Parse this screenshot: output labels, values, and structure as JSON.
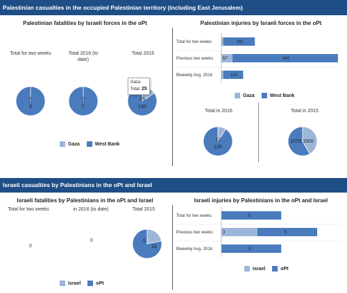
{
  "colors": {
    "gaza": "#9bb6d8",
    "west_bank": "#4a7bbd",
    "israel": "#9bb6d8",
    "opt": "#4a7bbd",
    "banner": "#1f4e86"
  },
  "section1": {
    "banner": "Palestinian casualties in the occupied Palestinian territory (including East Jerusalem)"
  },
  "section2": {
    "banner": "Israeli casualties by Palestinians in the oPt and Israel"
  },
  "tooltip": {
    "series": "Gaza",
    "label": "Total:",
    "value": "25"
  },
  "chart_data": [
    {
      "type": "pie",
      "title": "Palestinian fatalities by Israeli forces in the oPt",
      "legend": [
        "Gaza",
        "West Bank"
      ],
      "legend_position": "bottom",
      "pies": [
        {
          "label": "Total for two weeks",
          "values": [
            0,
            9
          ]
        },
        {
          "label": "Total 2016 (to date)",
          "values": [
            0,
            7
          ]
        },
        {
          "label": "Total 2015",
          "values": [
            25,
            135
          ]
        }
      ]
    },
    {
      "type": "bar",
      "orientation": "horizontal",
      "stacked": true,
      "title": "Palestinian injuries by Israeli forces in the oPt",
      "categories": [
        "Total for two weeks",
        "Previous two weeks",
        "Biweekly Avg. 2016"
      ],
      "series": [
        {
          "name": "Gaza",
          "values": [
            12,
            67,
            12
          ]
        },
        {
          "name": "West Bank",
          "values": [
            191,
            640,
            120
          ]
        }
      ],
      "legend_position": "bottom"
    },
    {
      "type": "pie",
      "pies": [
        {
          "label": "Total in 2016",
          "values": [
            12,
            120
          ]
        },
        {
          "label": "Total in 2015",
          "values": [
            1075,
            1500
          ]
        }
      ]
    },
    {
      "type": "pie",
      "title": "Israeli fatalities by Palestinians in the oPt and Israel",
      "legend": [
        "Israel",
        "oPt"
      ],
      "legend_position": "bottom",
      "pies": [
        {
          "label": "Total for two weeks",
          "values": [
            0,
            0
          ],
          "empty_text": "0"
        },
        {
          "label": "in 2016 (to date)",
          "values": [
            0,
            0
          ],
          "empty_text": "0"
        },
        {
          "label": "Total 2015",
          "values": [
            5,
            18
          ]
        }
      ]
    },
    {
      "type": "bar",
      "orientation": "horizontal",
      "stacked": true,
      "title": "Israeli injuries by Palestinians in the oPt and Israel",
      "categories": [
        "Total for two weeks",
        "Previous two weeks",
        "Biweekly Avg. 2016"
      ],
      "series": [
        {
          "name": "Israel",
          "values": [
            0,
            3,
            0
          ]
        },
        {
          "name": "oPt",
          "values": [
            5,
            5,
            5
          ]
        }
      ],
      "legend_position": "bottom"
    }
  ]
}
